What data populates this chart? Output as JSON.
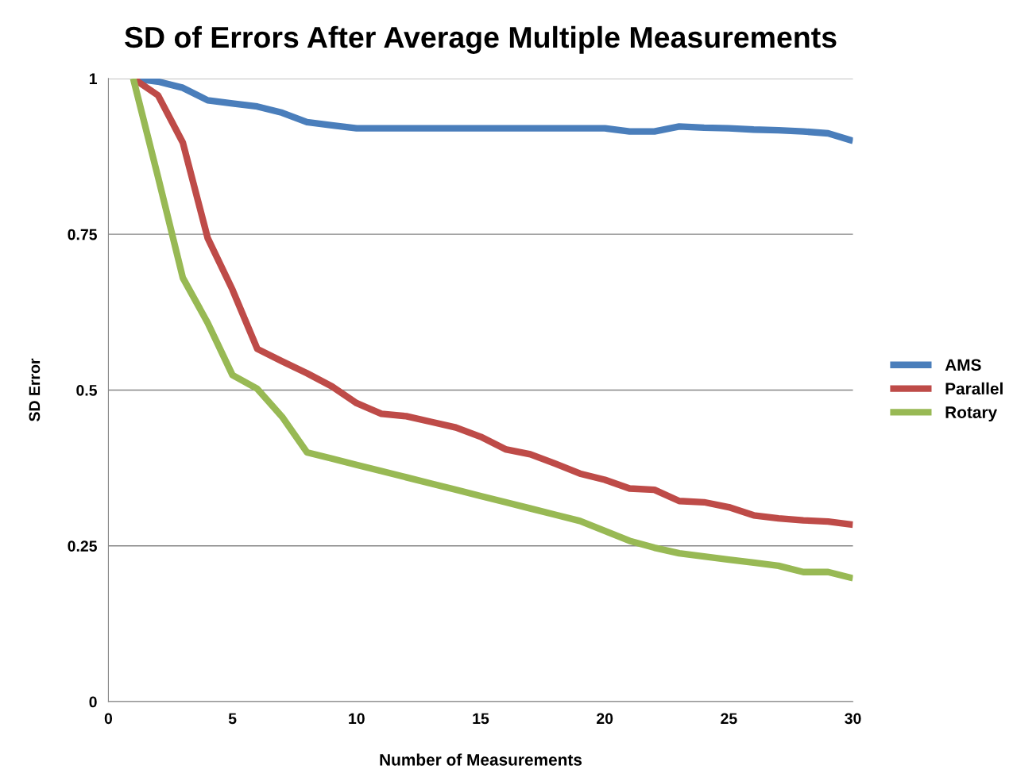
{
  "chart_data": {
    "type": "line",
    "title": "SD of Errors After Average Multiple Measurements",
    "xlabel": "Number of Measurements",
    "ylabel": "SD Error",
    "x": [
      1,
      2,
      3,
      4,
      5,
      6,
      7,
      8,
      9,
      10,
      11,
      12,
      13,
      14,
      15,
      16,
      17,
      18,
      19,
      20,
      21,
      22,
      23,
      24,
      25,
      26,
      27,
      28,
      29,
      30
    ],
    "series": [
      {
        "name": "AMS",
        "color": "#4a7ebb",
        "values": [
          1.0,
          0.995,
          0.985,
          0.965,
          0.96,
          0.955,
          0.945,
          0.93,
          0.925,
          0.92,
          0.92,
          0.92,
          0.92,
          0.92,
          0.92,
          0.92,
          0.92,
          0.92,
          0.92,
          0.92,
          0.915,
          0.915,
          0.923,
          0.921,
          0.92,
          0.918,
          0.917,
          0.915,
          0.912,
          0.9
        ]
      },
      {
        "name": "Parallel",
        "color": "#be4b48",
        "values": [
          1.0,
          0.973,
          0.897,
          0.744,
          0.661,
          0.566,
          0.546,
          0.527,
          0.506,
          0.479,
          0.462,
          0.458,
          0.449,
          0.44,
          0.425,
          0.405,
          0.397,
          0.382,
          0.366,
          0.356,
          0.342,
          0.34,
          0.322,
          0.32,
          0.312,
          0.299,
          0.294,
          0.291,
          0.289,
          0.284
        ]
      },
      {
        "name": "Rotary",
        "color": "#98b954",
        "values": [
          1.0,
          0.842,
          0.68,
          0.608,
          0.524,
          0.502,
          0.457,
          0.4,
          0.39,
          0.38,
          0.37,
          0.36,
          0.35,
          0.34,
          0.33,
          0.32,
          0.31,
          0.3,
          0.29,
          0.274,
          0.258,
          0.247,
          0.238,
          0.233,
          0.228,
          0.223,
          0.218,
          0.208,
          0.208,
          0.198
        ]
      }
    ],
    "xlim": [
      0,
      30
    ],
    "xticks": [
      0,
      5,
      10,
      15,
      20,
      25,
      30
    ],
    "ylim": [
      0,
      1
    ],
    "yticks": [
      0,
      0.25,
      0.5,
      0.75,
      1
    ],
    "grid": "y",
    "legend": "right",
    "marker": "none",
    "line_style": "solid"
  }
}
